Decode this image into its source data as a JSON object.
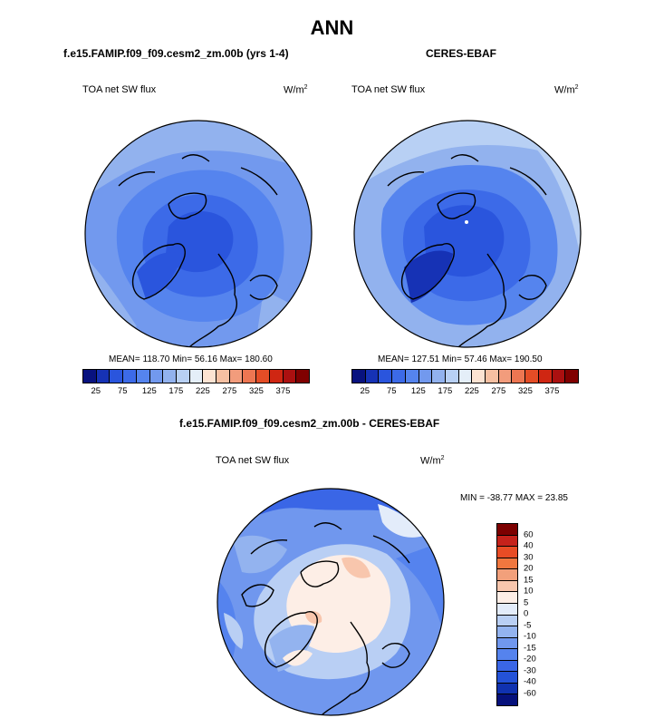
{
  "title": "ANN",
  "left_panel": {
    "title": "f.e15.FAMIP.f09_f09.cesm2_zm.00b (yrs 1-4)",
    "variable": "TOA net SW flux",
    "units": "W/m",
    "units_exp": "2",
    "stats": "MEAN= 118.70  Min=  56.16  Max= 180.60"
  },
  "right_panel": {
    "title": "CERES-EBAF",
    "variable": "TOA net SW flux",
    "units": "W/m",
    "units_exp": "2",
    "stats": "MEAN= 127.51  Min=  57.46  Max= 190.50"
  },
  "diff_panel": {
    "title": "f.e15.FAMIP.f09_f09.cesm2_zm.00b - CERES-EBAF",
    "variable": "TOA net SW flux",
    "units": "W/m",
    "units_exp": "2",
    "minmax": "MIN = -38.77 MAX =  23.85"
  },
  "colorbar_abs": {
    "colors": [
      "#08127f",
      "#1632b5",
      "#2a55dd",
      "#3c6ae8",
      "#5584ee",
      "#7299ee",
      "#92b2ee",
      "#b8d0f4",
      "#e4eef8",
      "#fce3d2",
      "#f6c0a2",
      "#f29c7c",
      "#ed7652",
      "#e44d26",
      "#cf2612",
      "#ab1010",
      "#800000"
    ],
    "ticks": [
      "25",
      "75",
      "125",
      "175",
      "225",
      "275",
      "325",
      "375"
    ]
  },
  "colorbar_diff": {
    "colors": [
      "#7c0000",
      "#c5221b",
      "#e84c25",
      "#f0773f",
      "#f2a07b",
      "#f8c6ad",
      "#fdeee6",
      "#e3ecfa",
      "#b9cff4",
      "#93b3ef",
      "#7097ee",
      "#5583ee",
      "#3a66e6",
      "#2452d8",
      "#1032b0",
      "#06117b"
    ],
    "ticks": [
      "60",
      "40",
      "30",
      "20",
      "15",
      "10",
      "5",
      "0",
      "-5",
      "-10",
      "-15",
      "-20",
      "-30",
      "-40",
      "-60"
    ]
  }
}
